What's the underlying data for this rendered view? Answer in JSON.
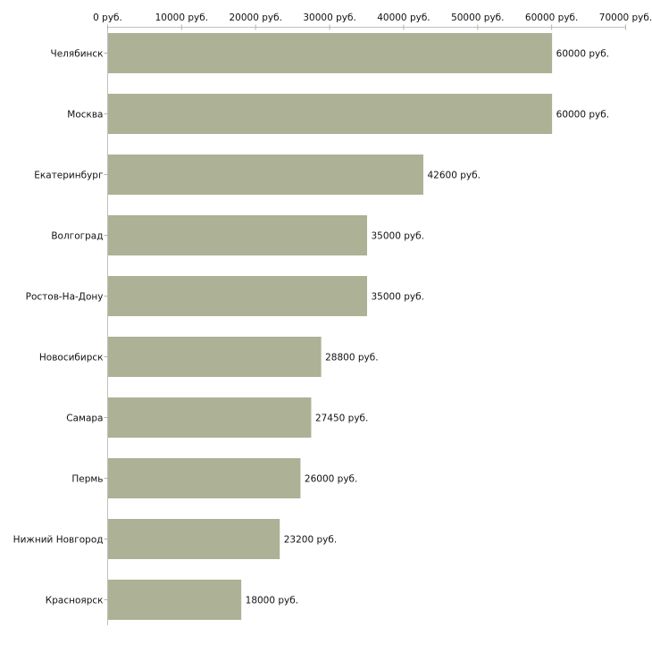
{
  "chart_data": {
    "type": "bar",
    "orientation": "horizontal",
    "title": "",
    "xlabel": "",
    "ylabel": "",
    "xlim": [
      0,
      70000
    ],
    "x_ticks": [
      0,
      10000,
      20000,
      30000,
      40000,
      50000,
      60000,
      70000
    ],
    "tick_labels": [
      "0 руб.",
      "10000 руб.",
      "20000 руб.",
      "30000 руб.",
      "40000 руб.",
      "50000 руб.",
      "60000 руб.",
      "70000 руб."
    ],
    "unit_suffix": " руб.",
    "categories": [
      "Челябинск",
      "Москва",
      "Екатеринбург",
      "Волгоград",
      "Ростов-На-Дону",
      "Новосибирск",
      "Самара",
      "Пермь",
      "Нижний Новгород",
      "Красноярск"
    ],
    "values": [
      60000,
      60000,
      42600,
      35000,
      35000,
      28800,
      27450,
      26000,
      23200,
      18000
    ],
    "data_labels": [
      "60000 руб.",
      "60000 руб.",
      "42600 руб.",
      "35000 руб.",
      "35000 руб.",
      "28800 руб.",
      "27450 руб.",
      "26000 руб.",
      "23200 руб.",
      "18000 руб."
    ],
    "bar_color": "#adb195",
    "axis_color": "#c0c0c0",
    "tick_color": "#b5b88f",
    "grid": false,
    "legend": "none"
  }
}
